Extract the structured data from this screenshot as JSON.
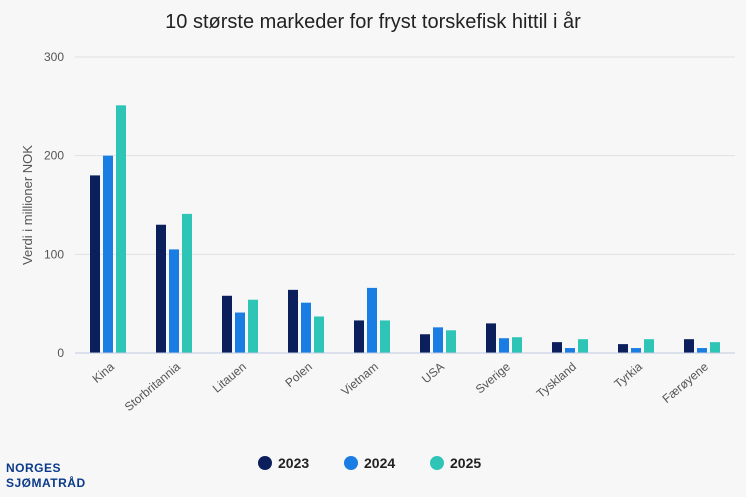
{
  "colors": {
    "series": [
      "#0a1f5c",
      "#1a7de3",
      "#2ec4b6"
    ],
    "grid": "#e2e2e2",
    "axis": "#bcc8e0",
    "logo": "#0b3a8a"
  },
  "logo": {
    "line1": "NORGES",
    "line2": "SJØMATRÅD"
  },
  "chart_data": {
    "type": "bar",
    "title": "10 største markeder for fryst torskefisk hittil i år",
    "ylabel": "Verdi i millioner NOK",
    "xlabel": "",
    "ylim": [
      0,
      300
    ],
    "yticks": [
      0,
      100,
      200,
      300
    ],
    "grid": true,
    "legend_position": "bottom-center",
    "categories": [
      "Kina",
      "Storbritannia",
      "Litauen",
      "Polen",
      "Vietnam",
      "USA",
      "Sverige",
      "Tyskland",
      "Tyrkia",
      "Færøyene"
    ],
    "series": [
      {
        "name": "2023",
        "values": [
          180,
          130,
          58,
          64,
          33,
          19,
          30,
          11,
          9,
          14
        ]
      },
      {
        "name": "2024",
        "values": [
          200,
          105,
          41,
          51,
          66,
          26,
          15,
          5,
          5,
          5
        ]
      },
      {
        "name": "2025",
        "values": [
          251,
          141,
          54,
          37,
          33,
          23,
          16,
          14,
          14,
          11
        ]
      }
    ]
  }
}
